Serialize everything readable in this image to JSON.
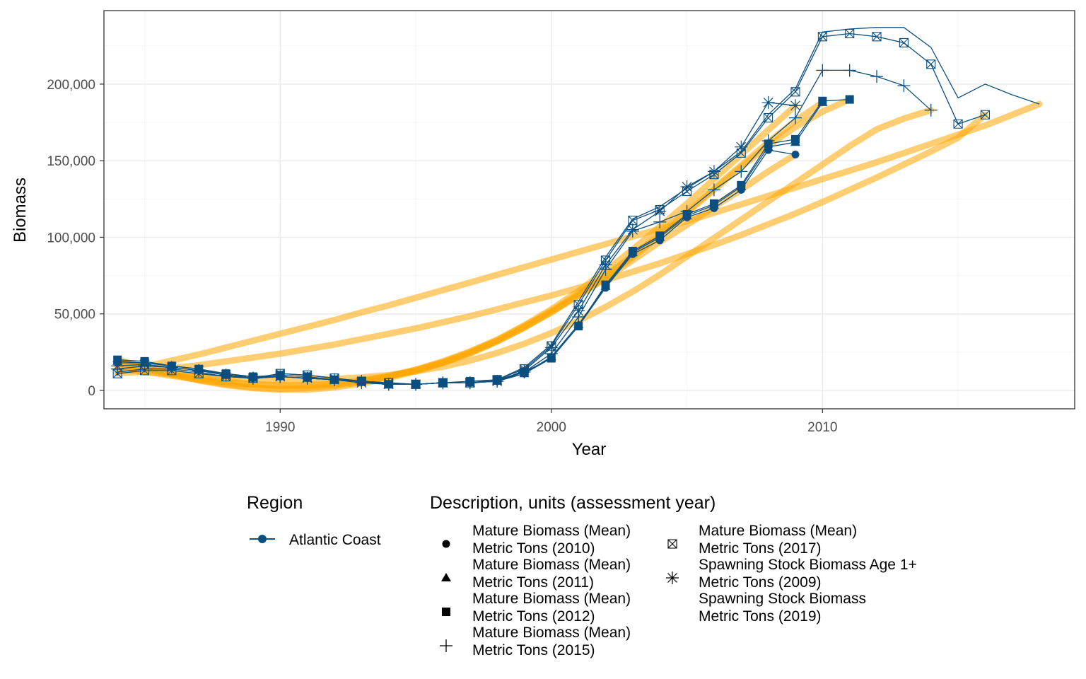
{
  "chart_data": {
    "type": "line",
    "title": "",
    "xlabel": "Year",
    "ylabel": "Biomass",
    "xlim": [
      1983.5,
      2019.3
    ],
    "ylim": [
      -12000,
      248000
    ],
    "x_ticks": [
      1990,
      2000,
      2010
    ],
    "x_tick_labels": [
      "1990",
      "2000",
      "2010"
    ],
    "y_ticks": [
      0,
      50000,
      100000,
      150000,
      200000
    ],
    "y_tick_labels": [
      "0",
      "50,000",
      "100,000",
      "150,000",
      "200,000"
    ],
    "grid": true,
    "colors": {
      "series": "#0b4f80",
      "smooth": "#ffa500",
      "panel_border": "#333333",
      "grid_major": "#ebebeb",
      "grid_minor": "#f5f5f5"
    },
    "legend": {
      "placement": "bottom",
      "region_title": "Region",
      "region_entries": [
        {
          "label": "Atlantic Coast",
          "icon": "circle-line"
        }
      ],
      "desc_title": "Description, units (assessment year)",
      "desc_entries": [
        {
          "line1": "Mature Biomass (Mean)",
          "line2": "Metric Tons (2010)",
          "icon": "circle"
        },
        {
          "line1": "Mature Biomass (Mean)",
          "line2": "Metric Tons (2011)",
          "icon": "triangle"
        },
        {
          "line1": "Mature Biomass (Mean)",
          "line2": "Metric Tons (2012)",
          "icon": "square"
        },
        {
          "line1": "Mature Biomass (Mean)",
          "line2": "Metric Tons (2015)",
          "icon": "plus"
        },
        {
          "line1": "Mature Biomass (Mean)",
          "line2": "Metric Tons (2017)",
          "icon": "boxx"
        },
        {
          "line1": "Spawning Stock Biomass Age 1+",
          "line2": "Metric Tons (2009)",
          "icon": "asterisk"
        },
        {
          "line1": "Spawning Stock Biomass",
          "line2": "Metric Tons (2019)",
          "icon": "none"
        }
      ]
    },
    "series": [
      {
        "name": "Mature Biomass (Mean) Metric Tons (2010)",
        "marker": "circle",
        "x": [
          1984,
          1985,
          1986,
          1987,
          1988,
          1989,
          1990,
          1991,
          1992,
          1993,
          1994,
          1995,
          1996,
          1997,
          1998,
          1999,
          2000,
          2001,
          2002,
          2003,
          2004,
          2005,
          2006,
          2007,
          2008,
          2009
        ],
        "y": [
          18000,
          18000,
          16000,
          14000,
          10000,
          8000,
          9000,
          8000,
          7000,
          6000,
          4000,
          4000,
          5000,
          5000,
          6000,
          11000,
          21000,
          42000,
          67000,
          89000,
          98000,
          113000,
          119000,
          131000,
          157000,
          154000
        ],
        "smooth": [
          18000,
          14500,
          11500,
          8500,
          6000,
          4000,
          3000,
          3000,
          4000,
          6000,
          9000,
          13000,
          18000,
          24000,
          32000,
          41000,
          51000,
          62000,
          73000,
          85000,
          97000,
          108000,
          120000,
          131000,
          143000,
          154000
        ]
      },
      {
        "name": "Mature Biomass (Mean) Metric Tons (2011)",
        "marker": "triangle",
        "x": [
          1984,
          1985,
          1986,
          1987,
          1988,
          1989,
          1990,
          1991,
          1992,
          1993,
          1994,
          1995,
          1996,
          1997,
          1998,
          1999,
          2000,
          2001,
          2002,
          2003,
          2004,
          2005,
          2006,
          2007,
          2008,
          2009,
          2010
        ],
        "y": [
          19000,
          18000,
          16000,
          14000,
          10000,
          9000,
          9000,
          8000,
          7000,
          6000,
          4000,
          4000,
          5000,
          5000,
          6000,
          11000,
          22000,
          43000,
          68000,
          90000,
          100000,
          114000,
          121000,
          133000,
          159000,
          162000,
          188000
        ],
        "smooth": [
          19000,
          14500,
          10500,
          7000,
          4000,
          2000,
          1000,
          1500,
          3000,
          5500,
          9000,
          13500,
          19000,
          25500,
          33000,
          42000,
          52000,
          63000,
          75000,
          88000,
          102000,
          117000,
          132000,
          147000,
          162000,
          176000,
          188000
        ]
      },
      {
        "name": "Mature Biomass (Mean) Metric Tons (2012)",
        "marker": "square",
        "x": [
          1984,
          1985,
          1986,
          1987,
          1988,
          1989,
          1990,
          1991,
          1992,
          1993,
          1994,
          1995,
          1996,
          1997,
          1998,
          1999,
          2000,
          2001,
          2002,
          2003,
          2004,
          2005,
          2006,
          2007,
          2008,
          2009,
          2010,
          2011
        ],
        "y": [
          20000,
          19000,
          16000,
          14000,
          11000,
          9000,
          10000,
          9000,
          7000,
          6000,
          4000,
          4000,
          5000,
          6000,
          7000,
          12000,
          21000,
          42000,
          69000,
          91000,
          101000,
          115000,
          122000,
          134000,
          161000,
          164000,
          189000,
          190000
        ],
        "smooth": [
          20000,
          15000,
          10500,
          6500,
          3500,
          1500,
          500,
          500,
          2000,
          4500,
          8000,
          12500,
          18000,
          24500,
          32000,
          41000,
          51000,
          62000,
          74000,
          87000,
          101000,
          116000,
          131000,
          146000,
          160000,
          172000,
          182000,
          190000
        ]
      },
      {
        "name": "Mature Biomass (Mean) Metric Tons (2015)",
        "marker": "plus",
        "x": [
          1984,
          1985,
          1986,
          1987,
          1988,
          1989,
          1990,
          1991,
          1992,
          1993,
          1994,
          1995,
          1996,
          1997,
          1998,
          1999,
          2000,
          2001,
          2002,
          2003,
          2004,
          2005,
          2006,
          2007,
          2008,
          2009,
          2010,
          2011,
          2012,
          2013,
          2014
        ],
        "y": [
          14000,
          16000,
          15000,
          13000,
          10000,
          8000,
          9000,
          8000,
          7000,
          6000,
          4000,
          4000,
          5000,
          5000,
          6000,
          12000,
          24000,
          48000,
          79000,
          104000,
          110000,
          117000,
          131000,
          143000,
          163000,
          178000,
          209000,
          209000,
          205000,
          199000,
          183000
        ],
        "smooth": [
          14000,
          12000,
          10500,
          9000,
          8000,
          7500,
          7000,
          7000,
          7500,
          8500,
          10000,
          12500,
          15500,
          19500,
          24500,
          30500,
          37500,
          45500,
          54500,
          64500,
          75500,
          87500,
          99500,
          111500,
          123500,
          135500,
          147500,
          159500,
          170500,
          177500,
          183000
        ]
      },
      {
        "name": "Mature Biomass (Mean) Metric Tons (2017)",
        "marker": "boxx",
        "x": [
          1984,
          1985,
          1986,
          1987,
          1988,
          1989,
          1990,
          1991,
          1992,
          1993,
          1994,
          1995,
          1996,
          1997,
          1998,
          1999,
          2000,
          2001,
          2002,
          2003,
          2004,
          2005,
          2006,
          2007,
          2008,
          2009,
          2010,
          2011,
          2012,
          2013,
          2014,
          2015,
          2016
        ],
        "y": [
          11000,
          13000,
          13000,
          11000,
          9000,
          8000,
          11000,
          10000,
          8000,
          6000,
          5000,
          4000,
          5000,
          5000,
          7000,
          14000,
          29000,
          56000,
          85000,
          111000,
          118000,
          130000,
          141000,
          155000,
          178000,
          195000,
          231000,
          233000,
          231000,
          227000,
          213000,
          174000,
          180000
        ],
        "smooth": [
          11000,
          12500,
          14500,
          16500,
          19000,
          21500,
          24000,
          27000,
          30000,
          33500,
          37000,
          40500,
          44500,
          48500,
          53000,
          57500,
          62000,
          67000,
          72000,
          77500,
          83000,
          89000,
          95000,
          101500,
          108500,
          115500,
          123000,
          131000,
          139000,
          147500,
          156000,
          165000,
          180000
        ]
      },
      {
        "name": "Spawning Stock Biomass Age 1+ Metric Tons (2009)",
        "marker": "asterisk",
        "x": [
          1984,
          1985,
          1986,
          1987,
          1988,
          1989,
          1990,
          1991,
          1992,
          1993,
          1994,
          1995,
          1996,
          1997,
          1998,
          1999,
          2000,
          2001,
          2002,
          2003,
          2004,
          2005,
          2006,
          2007,
          2008,
          2009
        ],
        "y": [
          16000,
          17000,
          15000,
          13000,
          10000,
          8000,
          9000,
          8000,
          7000,
          5000,
          4000,
          4000,
          5000,
          5000,
          6000,
          13000,
          28000,
          52000,
          82000,
          105000,
          117000,
          133000,
          143000,
          159000,
          188000,
          186000
        ],
        "smooth": [
          16000,
          12500,
          9500,
          7000,
          5000,
          4000,
          3500,
          3500,
          4500,
          6500,
          9500,
          13500,
          18500,
          25000,
          33000,
          42500,
          53000,
          65000,
          78000,
          92000,
          107000,
          122000,
          138000,
          154000,
          170000,
          186000
        ]
      },
      {
        "name": "Spawning Stock Biomass Metric Tons (2019)",
        "marker": "none",
        "x": [
          1984,
          1985,
          1986,
          1987,
          1988,
          1989,
          1990,
          1991,
          1992,
          1993,
          1994,
          1995,
          1996,
          1997,
          1998,
          1999,
          2000,
          2001,
          2002,
          2003,
          2004,
          2005,
          2006,
          2007,
          2008,
          2009,
          2010,
          2011,
          2012,
          2013,
          2014,
          2015,
          2016,
          2017,
          2018
        ],
        "y": [
          12000,
          14000,
          14000,
          12000,
          9000,
          8000,
          11000,
          10000,
          8000,
          6000,
          5000,
          4000,
          5000,
          5000,
          7000,
          15000,
          30000,
          58000,
          87000,
          112000,
          120000,
          132000,
          143000,
          156000,
          180000,
          197000,
          234000,
          236000,
          237000,
          237000,
          224000,
          191000,
          200000,
          193000,
          187000
        ],
        "smooth": [
          12000,
          15500,
          19500,
          23500,
          28000,
          32500,
          37000,
          41500,
          46000,
          51000,
          55500,
          60500,
          65500,
          70500,
          75500,
          80500,
          85500,
          90500,
          95500,
          100500,
          105500,
          110500,
          116000,
          121500,
          127000,
          132500,
          138000,
          143500,
          149000,
          155000,
          161000,
          167000,
          173000,
          180000,
          187000
        ]
      }
    ]
  }
}
